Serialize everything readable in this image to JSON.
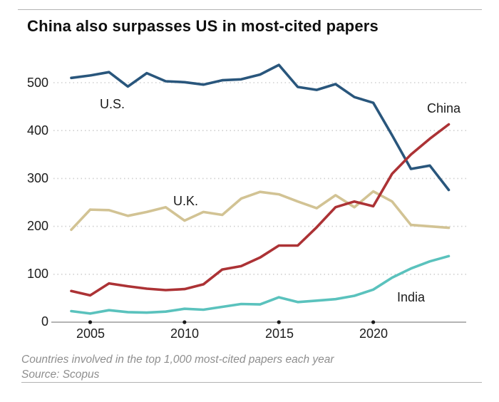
{
  "page": {
    "title": "China also surpasses US in most-cited papers",
    "footnote": "Countries involved in the top 1,000 most-cited papers each year",
    "source": "Source: Scopus"
  },
  "chart_data": {
    "type": "line",
    "title": "China also surpasses US in most-cited papers",
    "xlabel": "",
    "ylabel": "",
    "x": [
      2004,
      2005,
      2006,
      2007,
      2008,
      2009,
      2010,
      2011,
      2012,
      2013,
      2014,
      2015,
      2016,
      2017,
      2018,
      2019,
      2020,
      2021,
      2022,
      2023,
      2024
    ],
    "series": [
      {
        "name": "U.S.",
        "color": "#29567c",
        "values": [
          510,
          515,
          522,
          492,
          520,
          503,
          501,
          496,
          505,
          507,
          517,
          537,
          491,
          485,
          497,
          470,
          458,
          390,
          320,
          327,
          276
        ]
      },
      {
        "name": "China",
        "color": "#ac3235",
        "values": [
          65,
          56,
          81,
          75,
          70,
          67,
          69,
          79,
          110,
          117,
          135,
          160,
          160,
          198,
          240,
          252,
          242,
          310,
          350,
          383,
          413
        ]
      },
      {
        "name": "U.K.",
        "color": "#d2c394",
        "values": [
          193,
          235,
          234,
          222,
          230,
          240,
          212,
          230,
          224,
          258,
          272,
          267,
          252,
          238,
          265,
          240,
          273,
          252,
          203,
          200,
          197
        ]
      },
      {
        "name": "India",
        "color": "#5ac2bd",
        "values": [
          23,
          18,
          25,
          21,
          20,
          22,
          28,
          26,
          32,
          38,
          37,
          52,
          42,
          45,
          48,
          55,
          68,
          93,
          112,
          127,
          138
        ]
      }
    ],
    "x_ticks": [
      2005,
      2010,
      2015,
      2020
    ],
    "y_ticks": [
      0,
      100,
      200,
      300,
      400,
      500
    ],
    "xlim": [
      2004,
      2024
    ],
    "ylim": [
      0,
      560
    ],
    "grid": "horizontal-dotted",
    "legend_position": "inline-labels",
    "annotations": [
      "U.S.",
      "U.K.",
      "China",
      "India"
    ]
  }
}
